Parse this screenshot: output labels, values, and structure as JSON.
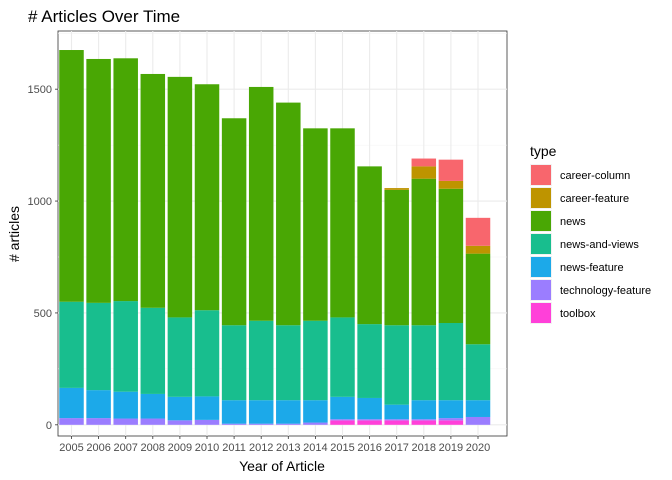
{
  "chart_data": {
    "type": "bar",
    "stacked": true,
    "title": "# Articles Over Time",
    "xlabel": "Year of Article",
    "ylabel": "# articles",
    "ylim": [
      -50,
      1760
    ],
    "yticks": [
      0,
      500,
      1000,
      1500
    ],
    "categories": [
      "2005",
      "2006",
      "2007",
      "2008",
      "2009",
      "2010",
      "2011",
      "2012",
      "2013",
      "2014",
      "2015",
      "2016",
      "2017",
      "2018",
      "2019",
      "2020"
    ],
    "legend_title": "type",
    "legend_position": "right",
    "series": [
      {
        "name": "toolbox",
        "color": "#FF40D9",
        "values": [
          0,
          0,
          0,
          0,
          0,
          0,
          0,
          0,
          0,
          0,
          20,
          20,
          20,
          20,
          20,
          0
        ]
      },
      {
        "name": "technology-feature",
        "color": "#9B7DFF",
        "values": [
          30,
          30,
          28,
          28,
          20,
          22,
          5,
          5,
          5,
          10,
          5,
          5,
          5,
          5,
          10,
          35
        ]
      },
      {
        "name": "news-feature",
        "color": "#1CA9E9",
        "values": [
          135,
          125,
          120,
          110,
          105,
          105,
          105,
          105,
          105,
          100,
          100,
          95,
          65,
          85,
          80,
          75
        ]
      },
      {
        "name": "news-and-views",
        "color": "#18BE8E",
        "values": [
          385,
          390,
          405,
          385,
          355,
          385,
          335,
          355,
          335,
          355,
          355,
          330,
          355,
          335,
          345,
          250
        ]
      },
      {
        "name": "news",
        "color": "#49A704",
        "values": [
          1125,
          1090,
          1085,
          1045,
          1075,
          1010,
          925,
          1045,
          995,
          860,
          845,
          705,
          605,
          655,
          600,
          405
        ]
      },
      {
        "name": "career-feature",
        "color": "#BE9400",
        "values": [
          0,
          0,
          0,
          0,
          0,
          0,
          0,
          0,
          0,
          0,
          0,
          0,
          8,
          55,
          35,
          35
        ]
      },
      {
        "name": "career-column",
        "color": "#F8666D",
        "values": [
          0,
          0,
          0,
          0,
          0,
          0,
          0,
          0,
          0,
          0,
          0,
          0,
          0,
          35,
          95,
          125
        ]
      }
    ]
  }
}
